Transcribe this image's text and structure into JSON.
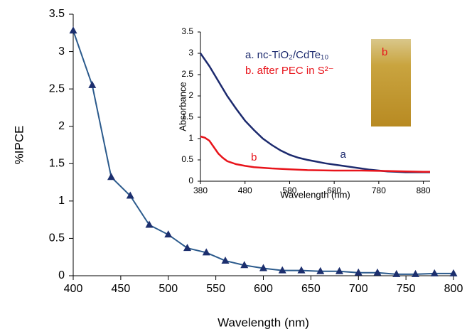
{
  "chart_data": [
    {
      "type": "line",
      "x_label": "Wavelength (nm)",
      "y_label": "%IPCE",
      "x": [
        400,
        420,
        440,
        460,
        480,
        500,
        520,
        540,
        560,
        580,
        600,
        620,
        640,
        660,
        680,
        700,
        720,
        740,
        760,
        780,
        800
      ],
      "series": [
        {
          "color": "#2b5a8c",
          "marker_color": "#1c2f6e",
          "marker": "triangle",
          "values": [
            3.28,
            2.55,
            1.32,
            1.07,
            0.68,
            0.55,
            0.37,
            0.31,
            0.2,
            0.14,
            0.1,
            0.07,
            0.07,
            0.06,
            0.06,
            0.04,
            0.04,
            0.02,
            0.02,
            0.03,
            0.03
          ]
        }
      ],
      "xlim": [
        400,
        800
      ],
      "xticks": [
        400,
        450,
        500,
        550,
        600,
        650,
        700,
        750,
        800
      ],
      "ylim": [
        0,
        3.5
      ],
      "yticks": [
        0,
        0.5,
        1,
        1.5,
        2,
        2.5,
        3,
        3.5
      ]
    },
    {
      "type": "line",
      "x_label": "Wavelength (nm)",
      "y_label": "Absorbance",
      "series": [
        {
          "name": "a. nc-TiO₂/CdTe₁₀",
          "color": "#1c2a6e",
          "x": [
            380,
            400,
            420,
            440,
            460,
            480,
            500,
            520,
            540,
            560,
            580,
            600,
            620,
            640,
            660,
            680,
            700,
            720,
            740,
            760,
            780,
            800,
            820,
            840,
            860,
            880,
            895
          ],
          "values": [
            3.0,
            2.7,
            2.35,
            2.0,
            1.7,
            1.42,
            1.2,
            1.0,
            0.85,
            0.72,
            0.62,
            0.55,
            0.5,
            0.46,
            0.42,
            0.39,
            0.36,
            0.33,
            0.3,
            0.27,
            0.25,
            0.23,
            0.22,
            0.21,
            0.21,
            0.21,
            0.21
          ]
        },
        {
          "name": "b. after PEC in S²⁻",
          "color": "#e8141b",
          "x": [
            380,
            390,
            400,
            410,
            420,
            430,
            440,
            460,
            480,
            500,
            540,
            580,
            620,
            680,
            740,
            800,
            840,
            880,
            895
          ],
          "values": [
            1.05,
            1.02,
            0.95,
            0.8,
            0.65,
            0.55,
            0.47,
            0.4,
            0.36,
            0.33,
            0.3,
            0.28,
            0.26,
            0.25,
            0.25,
            0.24,
            0.23,
            0.22,
            0.22
          ]
        }
      ],
      "annotations": [
        {
          "text": "a",
          "x": 700,
          "y": 0.62,
          "color": "#1c2a6e"
        },
        {
          "text": "b",
          "x": 500,
          "y": 0.55,
          "color": "#e8141b"
        }
      ],
      "photo_label": "b",
      "xlim": [
        380,
        895
      ],
      "xticks": [
        380,
        480,
        580,
        680,
        780,
        880
      ],
      "ylim": [
        0,
        3.5
      ],
      "yticks": [
        0,
        0.5,
        1,
        1.5,
        2,
        2.5,
        3,
        3.5
      ]
    }
  ]
}
